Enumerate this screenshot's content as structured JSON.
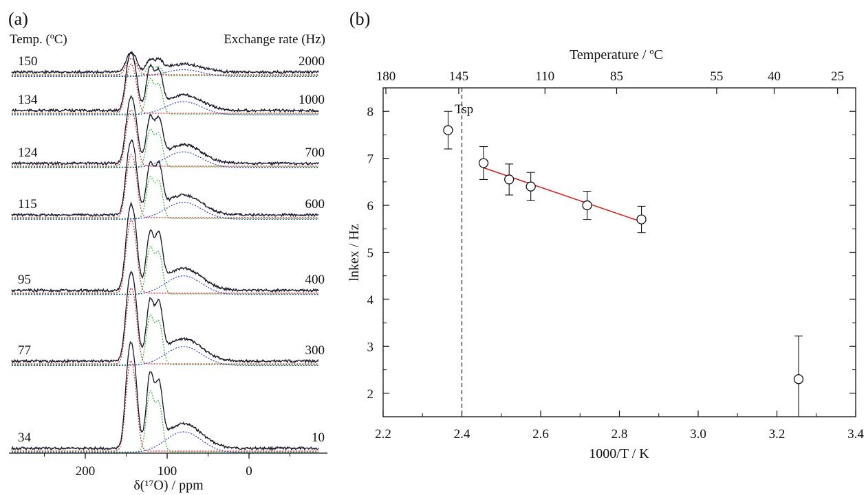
{
  "panel_a": {
    "label": "(a)",
    "left_header": "Temp. (ºC)",
    "right_header": "Exchange rate (Hz)",
    "xlabel": "δ(¹⁷O) / ppm",
    "xticks": [
      "200",
      "100",
      "0"
    ]
  },
  "panel_b": {
    "label": "(b)",
    "top_axis_title": "Temperature / ºC",
    "ylabel": "lnkex / Hz",
    "xlabel": "1000/T / K",
    "tsp_label": "Tsp"
  },
  "chart_data": [
    {
      "type": "line",
      "panel": "(a)",
      "description_of_series": "stacked 17O NMR spectra, experimental (solid black), fit (dashed), components (dotted red/green/blue)",
      "xlabel": "δ(¹⁷O) / ppm",
      "xlim": [
        295,
        -85
      ],
      "xticks": [
        200,
        100,
        0
      ],
      "spectra": [
        {
          "temp_label": "150",
          "rate_label": "2000"
        },
        {
          "temp_label": "134",
          "rate_label": "1000"
        },
        {
          "temp_label": "124",
          "rate_label": "700"
        },
        {
          "temp_label": "115",
          "rate_label": "600"
        },
        {
          "temp_label": "95",
          "rate_label": "400"
        },
        {
          "temp_label": "77",
          "rate_label": "300"
        },
        {
          "temp_label": "34",
          "rate_label": "10"
        }
      ],
      "component_colors": [
        "#d6262a",
        "#2fb52f",
        "#2a3fcf"
      ],
      "peak_positions_ppm": [
        147,
        140,
        121,
        110,
        80
      ]
    },
    {
      "type": "scatter",
      "panel": "(b)",
      "xlabel": "1000/T / K",
      "ylabel": "lnkex / Hz",
      "xlim": [
        2.2,
        3.4
      ],
      "ylim": [
        1.5,
        8.5
      ],
      "xticks": [
        "2.2",
        "2.4",
        "2.6",
        "2.8",
        "3.0",
        "3.2",
        "3.4"
      ],
      "yticks": [
        "2",
        "3",
        "4",
        "5",
        "6",
        "7",
        "8"
      ],
      "top_axis": {
        "title": "Temperature / ºC",
        "ticks": [
          "180",
          "145",
          "110",
          "85",
          "55",
          "40",
          "25"
        ],
        "tick_positions_1000_over_T": [
          2.207,
          2.392,
          2.611,
          2.793,
          3.047,
          3.193,
          3.354
        ]
      },
      "points": [
        {
          "x": 2.365,
          "y": 7.6,
          "err": 0.4
        },
        {
          "x": 2.455,
          "y": 6.9,
          "err": 0.35
        },
        {
          "x": 2.52,
          "y": 6.55,
          "err": 0.33
        },
        {
          "x": 2.575,
          "y": 6.4,
          "err": 0.3
        },
        {
          "x": 2.718,
          "y": 6.0,
          "err": 0.3
        },
        {
          "x": 2.856,
          "y": 5.7,
          "err": 0.28
        },
        {
          "x": 3.255,
          "y": 2.3,
          "err": 0.92
        }
      ],
      "fit_line": {
        "x": [
          2.455,
          2.856
        ],
        "y": [
          6.8,
          5.65
        ],
        "color": "#d62020"
      },
      "vline_x": 2.4,
      "marker_color": "#111111"
    }
  ]
}
